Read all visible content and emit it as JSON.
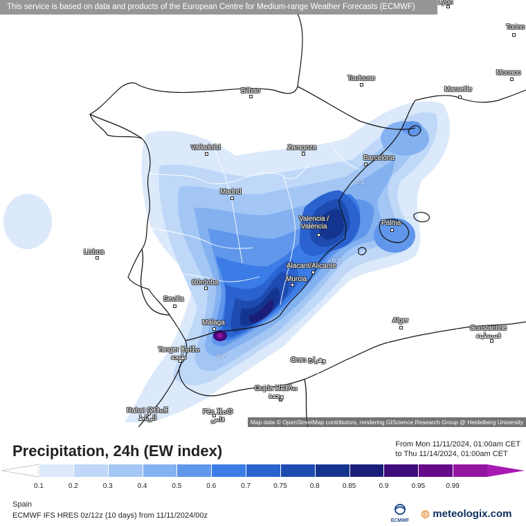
{
  "banner": "This service is based on data and products of the European Centre for Medium-range Weather Forecasts (ECMWF)",
  "attribution": "Map data © OpenStreetMap contributors, rendering GIScience Research Group @ Heidelberg University",
  "title": "Precipitation, 24h (EW index)",
  "range": {
    "from": "From Mon 11/11/2024, 01:00am CET",
    "to": "to Thu 11/14/2024, 01:00am CET"
  },
  "legend": {
    "ticks": [
      "0.1",
      "0.2",
      "0.3",
      "0.4",
      "0.5",
      "0.6",
      "0.7",
      "0.75",
      "0.8",
      "0.85",
      "0.9",
      "0.95",
      "0.99"
    ],
    "colors": [
      "#dbe9fb",
      "#bfd8f8",
      "#a3c6f4",
      "#84b1ef",
      "#6097eb",
      "#3b7ce6",
      "#2a62cf",
      "#1d4bb0",
      "#14358f",
      "#1b1e78",
      "#3e0c7a",
      "#650a88",
      "#9316a0"
    ]
  },
  "region": "Spain",
  "model": "ECMWF IFS HRES 0z/12z (10 days) from 11/11/2024/00z",
  "brand": {
    "ecmwf": "ECMWF",
    "meteologix": "meteologix.com"
  },
  "cities": [
    {
      "id": "lyon",
      "label": "Lyon"
    },
    {
      "id": "torino",
      "label": "Torino"
    },
    {
      "id": "monaco",
      "label": "Monaco"
    },
    {
      "id": "toulouse",
      "label": "Toulouse"
    },
    {
      "id": "marseille",
      "label": "Marseille"
    },
    {
      "id": "bilbao",
      "label": "Bilbao"
    },
    {
      "id": "valladolid",
      "label": "Valladolid"
    },
    {
      "id": "zaragoza",
      "label": "Zaragoza"
    },
    {
      "id": "barcelona",
      "label": "Barcelona"
    },
    {
      "id": "madrid",
      "label": "Madrid"
    },
    {
      "id": "valencia",
      "label": "Valencia /\nValència"
    },
    {
      "id": "palma",
      "label": "Palma"
    },
    {
      "id": "lisboa",
      "label": "Lisboa"
    },
    {
      "id": "alicante",
      "label": "Alacant/Alicante"
    },
    {
      "id": "murcia",
      "label": "Murcia"
    },
    {
      "id": "cordoba",
      "label": "Córdoba"
    },
    {
      "id": "sevilla",
      "label": "Sevilla"
    },
    {
      "id": "malaga",
      "label": "Málaga"
    },
    {
      "id": "tanger",
      "label": "Tanger ⵟⴰⵏⵊⴰ\nطنجة"
    },
    {
      "id": "alger",
      "label": "Alger"
    },
    {
      "id": "constantine",
      "label": "Constantine\nقسنطينة"
    },
    {
      "id": "oran",
      "label": "Oran وهران"
    },
    {
      "id": "oujda",
      "label": "Oujda ⵡⵓⵊⴷⴰ\nوجدة"
    },
    {
      "id": "rabat",
      "label": "Rabat ⵕⴱⴰⵟ\nالرباط"
    },
    {
      "id": "fes",
      "label": "Fès ⴼⴰⵙ\nفاس"
    }
  ],
  "contours": [
    "0.5",
    "0.7",
    "0.5"
  ]
}
